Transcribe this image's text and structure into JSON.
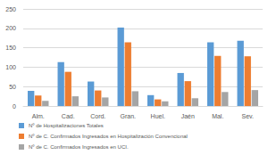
{
  "chart_data": {
    "type": "bar",
    "categories": [
      "Alm.",
      "Cad.",
      "Cord.",
      "Gran.",
      "Huel.",
      "Jaén",
      "Mal.",
      "Sev."
    ],
    "series": [
      {
        "name": "Nº de Hospitalizaciones Totales",
        "color": "#5B9BD5",
        "values": [
          39,
          113,
          63,
          202,
          28,
          85,
          164,
          168
        ]
      },
      {
        "name": "Nº de C. Confirmados Ingresados en Hospitalización Convencional",
        "color": "#ED7D31",
        "values": [
          27,
          88,
          40,
          164,
          17,
          64,
          129,
          128
        ]
      },
      {
        "name": "Nº de C. Confirmados Ingresados en UCI.",
        "color": "#A5A5A5",
        "values": [
          13,
          25,
          22,
          38,
          12,
          20,
          36,
          41
        ]
      }
    ],
    "ylim": [
      0,
      250
    ],
    "yticks": [
      0,
      50,
      100,
      150,
      200,
      250
    ],
    "grid": true,
    "legend": "bottom"
  }
}
